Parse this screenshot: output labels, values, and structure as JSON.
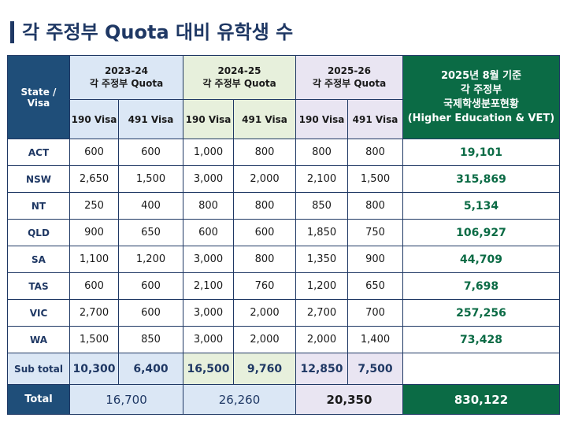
{
  "title": "각 주정부 Quota 대비 유학생 수",
  "header": {
    "state_visa": [
      "State /",
      "Visa"
    ],
    "periods": [
      {
        "year": "2023-24",
        "label": "각 주정부 Quota"
      },
      {
        "year": "2024-25",
        "label": "각 주정부 Quota"
      },
      {
        "year": "2025-26",
        "label": "각 주정부 Quota"
      }
    ],
    "intl_students": [
      "2025년 8월 기준",
      "각 주정부",
      "국제학생분포현황",
      "(Higher Education & VET)"
    ],
    "visa_190": "190 Visa",
    "visa_491": "491 Visa"
  },
  "rows": [
    {
      "state": "ACT",
      "v": [
        "600",
        "600",
        "1,000",
        "800",
        "800",
        "800"
      ],
      "intl": "19,101"
    },
    {
      "state": "NSW",
      "v": [
        "2,650",
        "1,500",
        "3,000",
        "2,000",
        "2,100",
        "1,500"
      ],
      "intl": "315,869"
    },
    {
      "state": "NT",
      "v": [
        "250",
        "400",
        "800",
        "800",
        "850",
        "800"
      ],
      "intl": "5,134"
    },
    {
      "state": "QLD",
      "v": [
        "900",
        "650",
        "600",
        "600",
        "1,850",
        "750"
      ],
      "intl": "106,927"
    },
    {
      "state": "SA",
      "v": [
        "1,100",
        "1,200",
        "3,000",
        "800",
        "1,350",
        "900"
      ],
      "intl": "44,709"
    },
    {
      "state": "TAS",
      "v": [
        "600",
        "600",
        "2,100",
        "760",
        "1,200",
        "650"
      ],
      "intl": "7,698"
    },
    {
      "state": "VIC",
      "v": [
        "2,700",
        "600",
        "3,000",
        "2,000",
        "2,700",
        "700"
      ],
      "intl": "257,256"
    },
    {
      "state": "WA",
      "v": [
        "1,500",
        "850",
        "3,000",
        "2,000",
        "2,000",
        "1,400"
      ],
      "intl": "73,428"
    }
  ],
  "subtotal": {
    "label": "Sub total",
    "v": [
      "10,300",
      "6,400",
      "16,500",
      "9,760",
      "12,850",
      "7,500"
    ]
  },
  "total": {
    "label": "Total",
    "v": [
      "16,700",
      "26,260",
      "20,350"
    ],
    "intl": "830,122"
  }
}
